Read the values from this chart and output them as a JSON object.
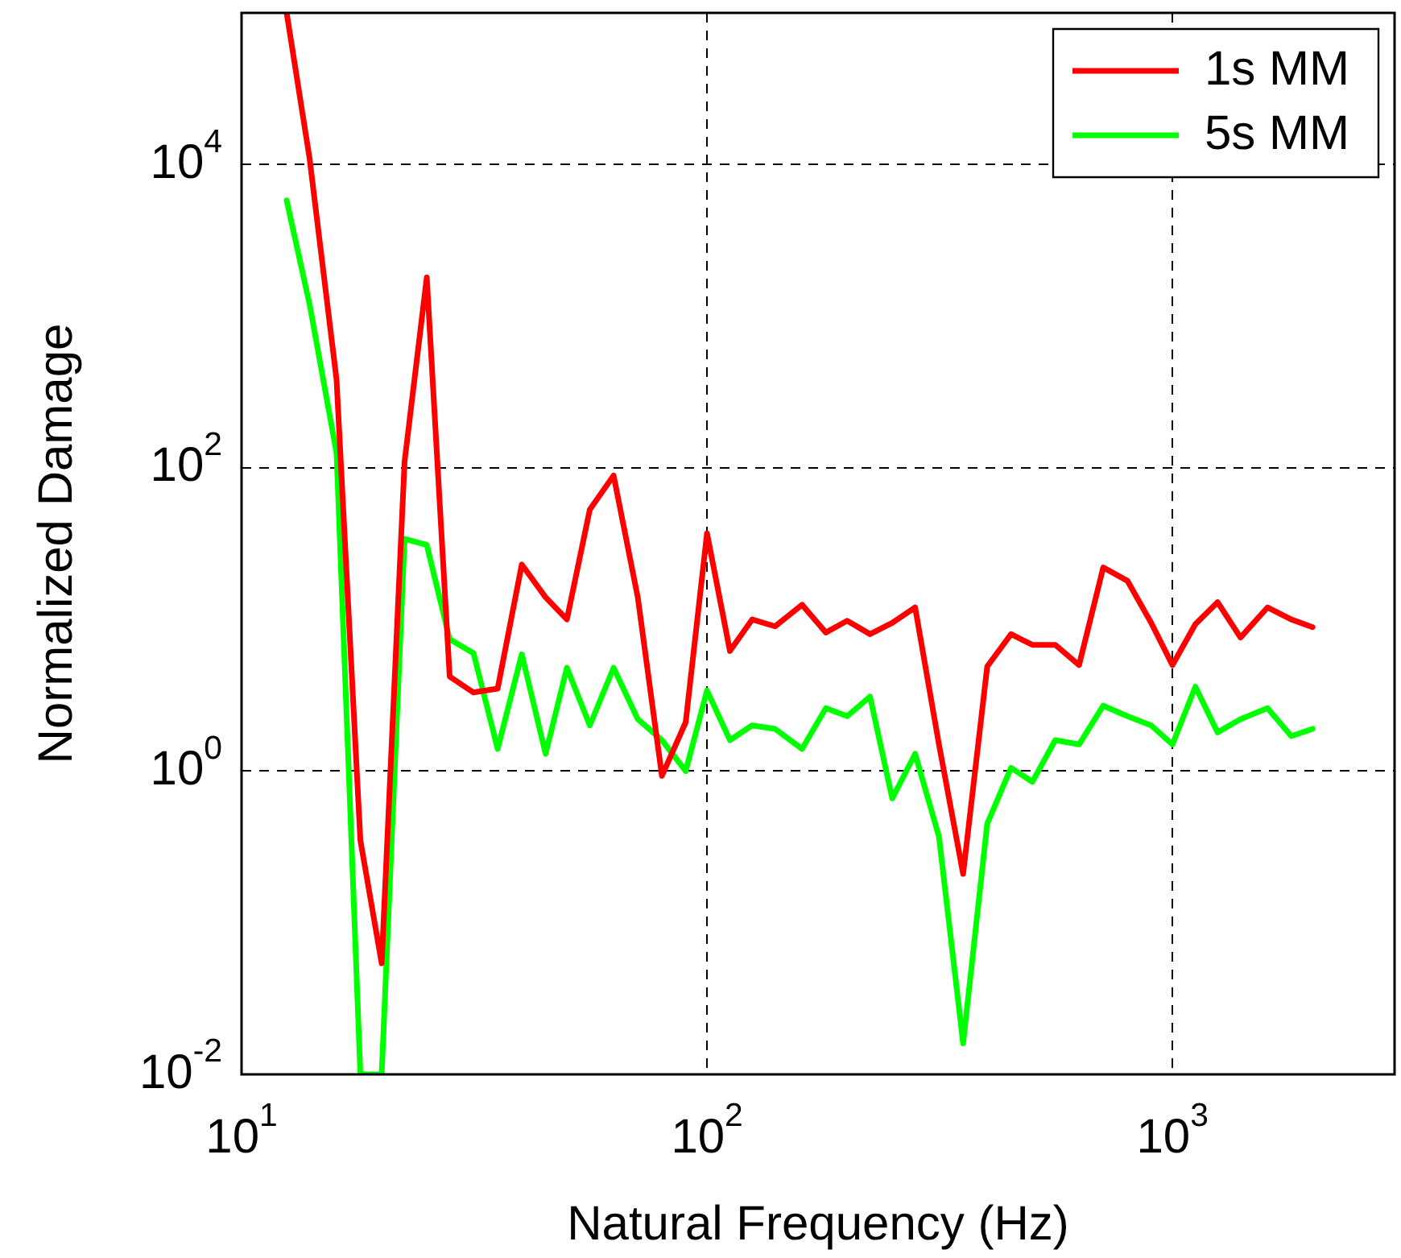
{
  "chart_data": {
    "type": "line",
    "xlabel": "Natural Frequency (Hz)",
    "ylabel": "Normalized Damage",
    "log": "xy",
    "grid": true,
    "legend": "top right",
    "marker": "none",
    "line_style": "solid",
    "x": [
      12.5,
      14,
      16,
      18,
      20,
      22.4,
      25,
      28,
      31.5,
      35.5,
      40,
      45,
      50,
      56,
      63,
      71,
      80,
      90,
      100,
      112,
      125,
      140,
      160,
      180,
      200,
      224,
      250,
      280,
      315,
      355,
      400,
      450,
      500,
      560,
      630,
      710,
      800,
      900,
      1000,
      1120,
      1250,
      1400,
      1600,
      1800,
      2000
    ],
    "xlim": [
      10,
      3000
    ],
    "xticks": [
      {
        "value": 10,
        "label": "10$^{1}$"
      },
      {
        "value": 100,
        "label": "10$^{2}$"
      },
      {
        "value": 1000,
        "label": "10$^{3}$"
      }
    ],
    "ylim": [
      0.01,
      100000
    ],
    "yticks": [
      {
        "value": 0.01,
        "label": "10$^{-2}$"
      },
      {
        "value": 1,
        "label": "10$^{0}$"
      },
      {
        "value": 100,
        "label": "10$^{2}$"
      },
      {
        "value": 10000,
        "label": "10$^{4}$"
      }
    ],
    "series": [
      {
        "name": "1s MM",
        "color": "#ff0000",
        "values": [
          100000,
          11000,
          380,
          0.35,
          0.054,
          110,
          1800,
          4.2,
          3.3,
          3.5,
          23,
          14,
          10,
          53,
          89,
          14,
          0.93,
          2.1,
          37,
          6.2,
          10,
          9,
          12.5,
          8.2,
          9.8,
          8,
          9.5,
          12,
          1.5,
          0.21,
          4.9,
          8,
          6.8,
          6.8,
          5,
          22,
          18,
          9.5,
          5,
          9.3,
          13,
          7.6,
          12,
          10,
          8.9
        ]
      },
      {
        "name": "5s MM",
        "color": "#00ff00",
        "values": [
          5800,
          1200,
          125,
          0.01,
          0.01,
          34,
          31,
          7.4,
          6,
          1.4,
          5.9,
          1.3,
          4.8,
          2,
          4.8,
          2.2,
          1.6,
          1,
          3.4,
          1.6,
          2,
          1.9,
          1.4,
          2.6,
          2.3,
          3.1,
          0.66,
          1.3,
          0.37,
          0.016,
          0.45,
          1.05,
          0.85,
          1.6,
          1.5,
          2.7,
          2.3,
          2,
          1.5,
          3.6,
          1.8,
          2.2,
          2.6,
          1.7,
          1.9
        ]
      }
    ]
  }
}
